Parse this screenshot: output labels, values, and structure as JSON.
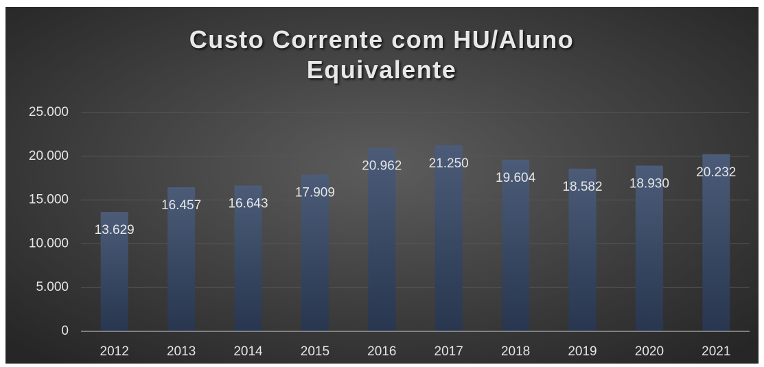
{
  "chart_data": {
    "type": "bar",
    "title": "Custo Corrente com HU/Aluno Equivalente",
    "categories": [
      "2012",
      "2013",
      "2014",
      "2015",
      "2016",
      "2017",
      "2018",
      "2019",
      "2020",
      "2021"
    ],
    "values": [
      13629,
      16457,
      16643,
      17909,
      20962,
      21250,
      19604,
      18582,
      18930,
      20232
    ],
    "value_labels": [
      "13.629",
      "16.457",
      "16.643",
      "17.909",
      "20.962",
      "21.250",
      "19.604",
      "18.582",
      "18.930",
      "20.232"
    ],
    "color": "#3b4b68",
    "ylim": [
      0,
      25000
    ],
    "yticks": [
      0,
      {
        "value": 5000,
        "label": "5.000"
      },
      {
        "value": 10000,
        "label": "10.000"
      },
      {
        "value": 15000,
        "label": "15.000"
      },
      {
        "value": 20000,
        "label": "20.000"
      },
      {
        "value": 25000,
        "label": "25.000"
      }
    ],
    "grid": true
  }
}
